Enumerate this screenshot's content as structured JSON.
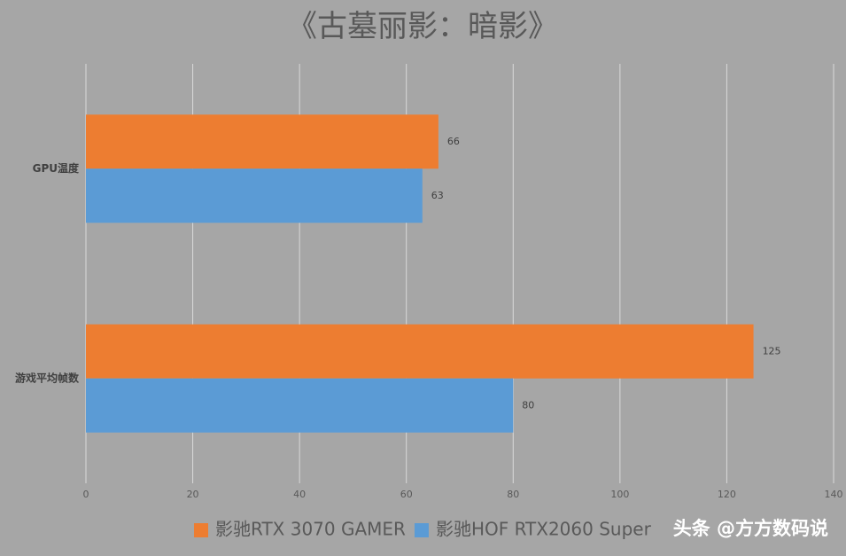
{
  "chart_data": {
    "type": "bar",
    "horizontal": true,
    "title": "《古墓丽影：暗影》",
    "categories": [
      "GPU温度",
      "游戏平均帧数"
    ],
    "series": [
      {
        "name": "影驰RTX 3070 GAMER",
        "color": "#ed7d31",
        "values": [
          66,
          125
        ]
      },
      {
        "name": "影驰HOF RTX2060 Super",
        "color": "#5b9bd5",
        "values": [
          63,
          80
        ]
      }
    ],
    "xlim": [
      0,
      140
    ],
    "xticks": [
      0,
      20,
      40,
      60,
      80,
      100,
      120,
      140
    ],
    "grid": true,
    "legend": "bottom"
  },
  "watermark": "头条 @方方数码说"
}
